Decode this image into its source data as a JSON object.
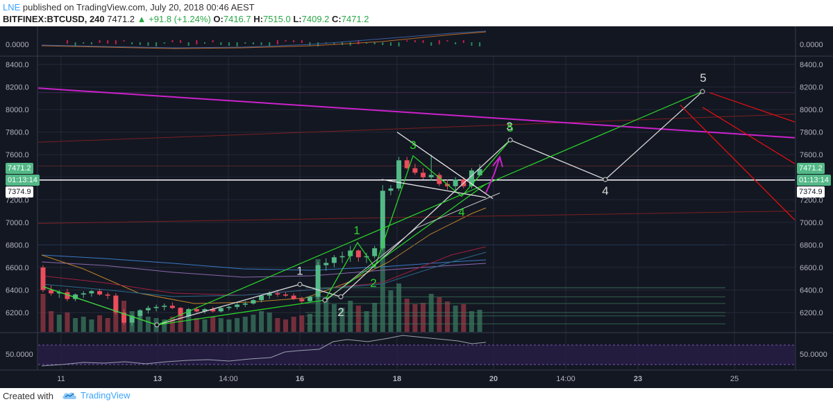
{
  "header": {
    "user": "LNE",
    "published": "published on TradingView.com, July 20, 2018 00:46 AEST",
    "symbol": "BITFINEX:BTCUSD, 240",
    "last": "7471.2",
    "change": "+91.8 (+1.24%)",
    "o_label": "O:",
    "o_value": "7416.7",
    "h_label": "H:",
    "h_value": "7515.0",
    "l_label": "L:",
    "l_value": "7409.2",
    "c_label": "C:",
    "c_value": "7471.2"
  },
  "price_axis": {
    "ticks": [
      "8400.0",
      "8200.0",
      "8000.0",
      "7800.0",
      "7600.0",
      "7400.0",
      "7200.0",
      "7000.0",
      "6800.0",
      "6600.0",
      "6400.0",
      "6200.0"
    ],
    "top_pane_label": "0.0000",
    "rsi_label": "50.0000",
    "last_price_tag": "7471.2",
    "countdown_tag": "01:13:14",
    "line_price_tag": "7374.9"
  },
  "time_axis": {
    "ticks": [
      "11",
      "13",
      "14:00",
      "16",
      "18",
      "20",
      "14:00",
      "23",
      "25"
    ]
  },
  "wave_labels": {
    "white": [
      "1",
      "2",
      "3",
      "4",
      "5"
    ],
    "green": [
      "1",
      "2",
      "3",
      "4",
      "5"
    ]
  },
  "colors": {
    "background": "#131722",
    "up_candle": "#53b987",
    "down_candle": "#eb4d5c",
    "wave_green": "#2bd62b",
    "wave_white": "#d9d9d9",
    "trendline_magenta": "#cc22cc",
    "projection_red": "#e01010",
    "rsi_band": "#2a1f4a"
  },
  "footer": {
    "created_with": "Created with",
    "brand": "TradingView"
  },
  "chart_data": {
    "type": "candlestick",
    "instrument": "BITFINEX:BTCUSD",
    "interval": "240",
    "ylim": [
      6080,
      8520
    ],
    "x_ticks": [
      "11",
      "13",
      "14:00",
      "16",
      "18",
      "20",
      "14:00",
      "23",
      "25"
    ],
    "y_ticks": [
      6200,
      6400,
      6600,
      6800,
      7000,
      7200,
      7400,
      7600,
      7800,
      8000,
      8200,
      8400
    ],
    "candles": [
      {
        "o": 6600,
        "h": 6620,
        "l": 6380,
        "c": 6400
      },
      {
        "o": 6400,
        "h": 6440,
        "l": 6350,
        "c": 6370
      },
      {
        "o": 6370,
        "h": 6400,
        "l": 6330,
        "c": 6380
      },
      {
        "o": 6380,
        "h": 6410,
        "l": 6300,
        "c": 6320
      },
      {
        "o": 6320,
        "h": 6370,
        "l": 6300,
        "c": 6360
      },
      {
        "o": 6360,
        "h": 6390,
        "l": 6330,
        "c": 6370
      },
      {
        "o": 6370,
        "h": 6400,
        "l": 6340,
        "c": 6390
      },
      {
        "o": 6390,
        "h": 6410,
        "l": 6350,
        "c": 6360
      },
      {
        "o": 6360,
        "h": 6380,
        "l": 6320,
        "c": 6350
      },
      {
        "o": 6350,
        "h": 6370,
        "l": 6180,
        "c": 6200
      },
      {
        "o": 6200,
        "h": 6230,
        "l": 6090,
        "c": 6110
      },
      {
        "o": 6110,
        "h": 6180,
        "l": 6080,
        "c": 6170
      },
      {
        "o": 6170,
        "h": 6230,
        "l": 6150,
        "c": 6220
      },
      {
        "o": 6220,
        "h": 6260,
        "l": 6190,
        "c": 6240
      },
      {
        "o": 6240,
        "h": 6270,
        "l": 6210,
        "c": 6250
      },
      {
        "o": 6250,
        "h": 6280,
        "l": 6220,
        "c": 6260
      },
      {
        "o": 6260,
        "h": 6290,
        "l": 6230,
        "c": 6240
      },
      {
        "o": 6240,
        "h": 6250,
        "l": 6160,
        "c": 6170
      },
      {
        "o": 6170,
        "h": 6240,
        "l": 6160,
        "c": 6230
      },
      {
        "o": 6230,
        "h": 6250,
        "l": 6200,
        "c": 6210
      },
      {
        "o": 6210,
        "h": 6240,
        "l": 6190,
        "c": 6230
      },
      {
        "o": 6230,
        "h": 6250,
        "l": 6200,
        "c": 6210
      },
      {
        "o": 6210,
        "h": 6250,
        "l": 6200,
        "c": 6240
      },
      {
        "o": 6240,
        "h": 6260,
        "l": 6220,
        "c": 6250
      },
      {
        "o": 6250,
        "h": 6290,
        "l": 6230,
        "c": 6270
      },
      {
        "o": 6270,
        "h": 6300,
        "l": 6250,
        "c": 6280
      },
      {
        "o": 6280,
        "h": 6320,
        "l": 6270,
        "c": 6310
      },
      {
        "o": 6310,
        "h": 6360,
        "l": 6290,
        "c": 6350
      },
      {
        "o": 6350,
        "h": 6390,
        "l": 6320,
        "c": 6370
      },
      {
        "o": 6370,
        "h": 6400,
        "l": 6340,
        "c": 6360
      },
      {
        "o": 6360,
        "h": 6380,
        "l": 6340,
        "c": 6350
      },
      {
        "o": 6350,
        "h": 6370,
        "l": 6310,
        "c": 6320
      },
      {
        "o": 6320,
        "h": 6340,
        "l": 6280,
        "c": 6300
      },
      {
        "o": 6300,
        "h": 6350,
        "l": 6290,
        "c": 6340
      },
      {
        "o": 6340,
        "h": 6650,
        "l": 6320,
        "c": 6620
      },
      {
        "o": 6620,
        "h": 6680,
        "l": 6570,
        "c": 6640
      },
      {
        "o": 6640,
        "h": 6710,
        "l": 6600,
        "c": 6690
      },
      {
        "o": 6690,
        "h": 6740,
        "l": 6640,
        "c": 6700
      },
      {
        "o": 6700,
        "h": 6790,
        "l": 6650,
        "c": 6750
      },
      {
        "o": 6750,
        "h": 6760,
        "l": 6650,
        "c": 6690
      },
      {
        "o": 6690,
        "h": 6730,
        "l": 6640,
        "c": 6700
      },
      {
        "o": 6700,
        "h": 6790,
        "l": 6680,
        "c": 6770
      },
      {
        "o": 6770,
        "h": 7330,
        "l": 6750,
        "c": 7280
      },
      {
        "o": 7280,
        "h": 7330,
        "l": 7240,
        "c": 7300
      },
      {
        "o": 7300,
        "h": 7580,
        "l": 7280,
        "c": 7550
      },
      {
        "o": 7550,
        "h": 7580,
        "l": 7470,
        "c": 7480
      },
      {
        "o": 7480,
        "h": 7520,
        "l": 7420,
        "c": 7440
      },
      {
        "o": 7440,
        "h": 7480,
        "l": 7380,
        "c": 7400
      },
      {
        "o": 7400,
        "h": 7600,
        "l": 7370,
        "c": 7420
      },
      {
        "o": 7420,
        "h": 7440,
        "l": 7320,
        "c": 7340
      },
      {
        "o": 7340,
        "h": 7380,
        "l": 7290,
        "c": 7320
      },
      {
        "o": 7320,
        "h": 7400,
        "l": 7280,
        "c": 7380
      },
      {
        "o": 7380,
        "h": 7400,
        "l": 7300,
        "c": 7320
      },
      {
        "o": 7320,
        "h": 7480,
        "l": 7300,
        "c": 7460
      },
      {
        "o": 7416.7,
        "h": 7515,
        "l": 7409.2,
        "c": 7471.2
      }
    ],
    "horizontal_lines": [
      7374.9
    ],
    "trendline": {
      "from": 8190,
      "to": 7750,
      "color": "#cc22cc"
    },
    "wave_projection_white": [
      6450,
      6340,
      7730,
      7380,
      8160
    ],
    "wave_count_green": [
      6820,
      6600,
      7590,
      7230,
      7730
    ]
  }
}
